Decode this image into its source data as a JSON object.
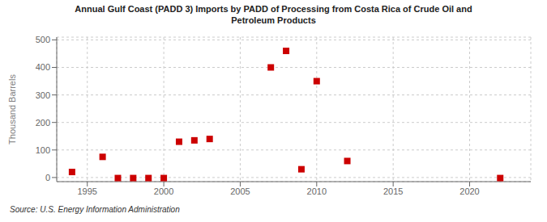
{
  "chart_data": {
    "type": "scatter",
    "title": "Annual Gulf Coast (PADD 3) Imports by PADD of Processing from Costa Rica of Crude Oil and\nPetroleum Products",
    "ylabel": "Thousand Barrels",
    "source": "Source: U.S. Energy Information Administration",
    "color": "#cc0000",
    "marker": "square",
    "grid": true,
    "xlim": [
      1993,
      2024
    ],
    "ylim": [
      -15,
      510
    ],
    "xticks": [
      1995,
      2000,
      2005,
      2010,
      2015,
      2020
    ],
    "yticks": [
      0,
      100,
      200,
      300,
      400,
      500
    ],
    "x": [
      1994,
      1996,
      1997,
      1998,
      1999,
      2000,
      2001,
      2002,
      2003,
      2007,
      2008,
      2009,
      2010,
      2012,
      2022
    ],
    "values": [
      20,
      75,
      -2,
      -2,
      -2,
      -2,
      130,
      135,
      140,
      400,
      460,
      30,
      350,
      60,
      -2
    ]
  }
}
